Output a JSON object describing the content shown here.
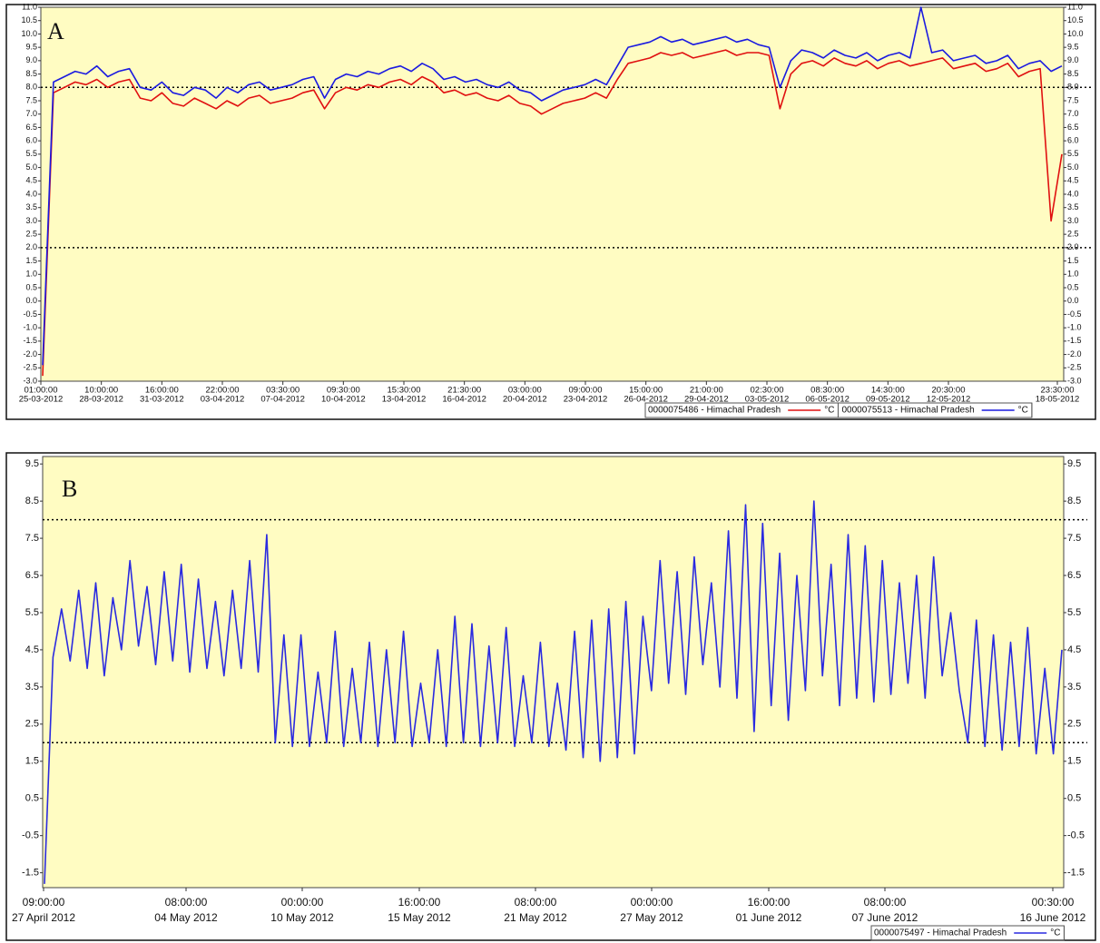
{
  "chart_data": [
    {
      "type": "line",
      "annotation": "A",
      "ylim": [
        -3.0,
        11.0
      ],
      "yticks": [
        {
          "value": 11,
          "label": "11.0"
        },
        10.5,
        {
          "value": 10,
          "label": "10.0"
        },
        9.5,
        {
          "value": 9,
          "label": "9.0"
        },
        8.5,
        {
          "value": 8,
          "label": "8.0"
        },
        7.5,
        {
          "value": 7,
          "label": "7.0"
        },
        6.5,
        {
          "value": 6,
          "label": "6.0"
        },
        5.5,
        {
          "value": 5,
          "label": "5.0"
        },
        4.5,
        {
          "value": 4,
          "label": "4.0"
        },
        3.5,
        {
          "value": 3,
          "label": "3.0"
        },
        2.5,
        {
          "value": 2,
          "label": "2.0"
        },
        1.5,
        {
          "value": 1,
          "label": "1.0"
        },
        0.5,
        {
          "value": 0,
          "label": "0.0"
        },
        -0.5,
        {
          "value": -1,
          "label": "-1.0"
        },
        -1.5,
        {
          "value": -2,
          "label": "-2.0"
        },
        -2.5,
        {
          "value": -3,
          "label": "-3.0"
        }
      ],
      "ref_lines": [
        8,
        2
      ],
      "x_labels": [
        {
          "time": "01:00:00",
          "date": "25-03-2012"
        },
        {
          "time": "10:00:00",
          "date": "28-03-2012"
        },
        {
          "time": "16:00:00",
          "date": "31-03-2012"
        },
        {
          "time": "22:00:00",
          "date": "03-04-2012"
        },
        {
          "time": "03:30:00",
          "date": "07-04-2012"
        },
        {
          "time": "09:30:00",
          "date": "10-04-2012"
        },
        {
          "time": "15:30:00",
          "date": "13-04-2012"
        },
        {
          "time": "21:30:00",
          "date": "16-04-2012"
        },
        {
          "time": "03:00:00",
          "date": "20-04-2012"
        },
        {
          "time": "09:00:00",
          "date": "23-04-2012"
        },
        {
          "time": "15:00:00",
          "date": "26-04-2012"
        },
        {
          "time": "21:00:00",
          "date": "29-04-2012"
        },
        {
          "time": "02:30:00",
          "date": "03-05-2012"
        },
        {
          "time": "08:30:00",
          "date": "06-05-2012"
        },
        {
          "time": "14:30:00",
          "date": "09-05-2012"
        },
        {
          "time": "20:30:00",
          "date": "12-05-2012"
        },
        {
          "time": "23:30:00",
          "date": "18-05-2012"
        }
      ],
      "series": [
        {
          "name": "0000075486 - Himachal Pradesh",
          "unit": "°C",
          "color": "#e01010",
          "values": [
            -2.8,
            7.8,
            8.0,
            8.2,
            8.1,
            8.3,
            8.0,
            8.2,
            8.3,
            7.6,
            7.5,
            7.8,
            7.4,
            7.3,
            7.6,
            7.4,
            7.2,
            7.5,
            7.3,
            7.6,
            7.7,
            7.4,
            7.5,
            7.6,
            7.8,
            7.9,
            7.2,
            7.8,
            8.0,
            7.9,
            8.1,
            8.0,
            8.2,
            8.3,
            8.1,
            8.4,
            8.2,
            7.8,
            7.9,
            7.7,
            7.8,
            7.6,
            7.5,
            7.7,
            7.4,
            7.3,
            7.0,
            7.2,
            7.4,
            7.5,
            7.6,
            7.8,
            7.6,
            8.3,
            8.9,
            9.0,
            9.1,
            9.3,
            9.2,
            9.3,
            9.1,
            9.2,
            9.3,
            9.4,
            9.2,
            9.3,
            9.3,
            9.2,
            7.2,
            8.5,
            8.9,
            9.0,
            8.8,
            9.1,
            8.9,
            8.8,
            9.0,
            8.7,
            8.9,
            9.0,
            8.8,
            8.9,
            9.0,
            9.1,
            8.7,
            8.8,
            8.9,
            8.6,
            8.7,
            8.9,
            8.4,
            8.6,
            8.7,
            3.0,
            5.5
          ]
        },
        {
          "name": "0000075513 - Himachal Pradesh",
          "unit": "°C",
          "color": "#1a1ae0",
          "values": [
            -2.4,
            8.2,
            8.4,
            8.6,
            8.5,
            8.8,
            8.4,
            8.6,
            8.7,
            8.0,
            7.9,
            8.2,
            7.8,
            7.7,
            8.0,
            7.9,
            7.6,
            8.0,
            7.8,
            8.1,
            8.2,
            7.9,
            8.0,
            8.1,
            8.3,
            8.4,
            7.6,
            8.3,
            8.5,
            8.4,
            8.6,
            8.5,
            8.7,
            8.8,
            8.6,
            8.9,
            8.7,
            8.3,
            8.4,
            8.2,
            8.3,
            8.1,
            8.0,
            8.2,
            7.9,
            7.8,
            7.5,
            7.7,
            7.9,
            8.0,
            8.1,
            8.3,
            8.1,
            8.8,
            9.5,
            9.6,
            9.7,
            9.9,
            9.7,
            9.8,
            9.6,
            9.7,
            9.8,
            9.9,
            9.7,
            9.8,
            9.6,
            9.5,
            8.0,
            9.0,
            9.4,
            9.3,
            9.1,
            9.4,
            9.2,
            9.1,
            9.3,
            9.0,
            9.2,
            9.3,
            9.1,
            11.0,
            9.3,
            9.4,
            9.0,
            9.1,
            9.2,
            8.9,
            9.0,
            9.2,
            8.7,
            8.9,
            9.0,
            8.6,
            8.8
          ]
        }
      ]
    },
    {
      "type": "line",
      "annotation": "B",
      "ylim": [
        -1.9,
        9.7
      ],
      "yticks": [
        9.5,
        8.5,
        7.5,
        6.5,
        5.5,
        4.5,
        3.5,
        2.5,
        1.5,
        0.5,
        -0.5,
        -1.5
      ],
      "ref_lines": [
        8,
        2
      ],
      "x_labels": [
        {
          "time": "09:00:00",
          "date": "27 April 2012"
        },
        {
          "time": "08:00:00",
          "date": "04 May 2012"
        },
        {
          "time": "00:00:00",
          "date": "10 May 2012"
        },
        {
          "time": "16:00:00",
          "date": "15 May 2012"
        },
        {
          "time": "08:00:00",
          "date": "21 May 2012"
        },
        {
          "time": "00:00:00",
          "date": "27 May 2012"
        },
        {
          "time": "16:00:00",
          "date": "01 June 2012"
        },
        {
          "time": "08:00:00",
          "date": "07 June 2012"
        },
        {
          "time": "00:30:00",
          "date": "16 June 2012"
        }
      ],
      "series": [
        {
          "name": "0000075497 - Himachal Pradesh",
          "unit": "°C",
          "color": "#2a2ae0",
          "values": [
            -1.8,
            4.3,
            5.6,
            4.2,
            6.1,
            4.0,
            6.3,
            3.8,
            5.9,
            4.5,
            6.9,
            4.6,
            6.2,
            4.1,
            6.6,
            4.2,
            6.8,
            3.9,
            6.4,
            4.0,
            5.8,
            3.8,
            6.1,
            4.0,
            6.9,
            3.9,
            7.6,
            2.0,
            4.9,
            1.9,
            4.9,
            1.9,
            3.9,
            2.0,
            5.0,
            1.9,
            4.0,
            2.0,
            4.7,
            1.9,
            4.5,
            2.0,
            5.0,
            1.9,
            3.6,
            2.0,
            4.5,
            1.9,
            5.4,
            2.0,
            5.2,
            1.9,
            4.6,
            2.0,
            5.1,
            1.9,
            3.8,
            2.0,
            4.7,
            1.9,
            3.6,
            1.8,
            5.0,
            1.6,
            5.3,
            1.5,
            5.6,
            1.6,
            5.8,
            1.7,
            5.4,
            3.4,
            6.9,
            3.6,
            6.6,
            3.3,
            7.0,
            4.1,
            6.3,
            3.5,
            7.7,
            3.2,
            8.4,
            2.3,
            7.9,
            3.0,
            7.1,
            2.6,
            6.5,
            3.4,
            8.5,
            3.8,
            6.8,
            3.0,
            7.6,
            3.2,
            7.3,
            3.1,
            6.9,
            3.3,
            6.3,
            3.6,
            6.5,
            3.2,
            7.0,
            3.8,
            5.5,
            3.4,
            2.0,
            5.3,
            1.9,
            4.9,
            1.8,
            4.7,
            1.9,
            5.1,
            1.7,
            4.0,
            1.7,
            4.5
          ]
        }
      ]
    }
  ]
}
